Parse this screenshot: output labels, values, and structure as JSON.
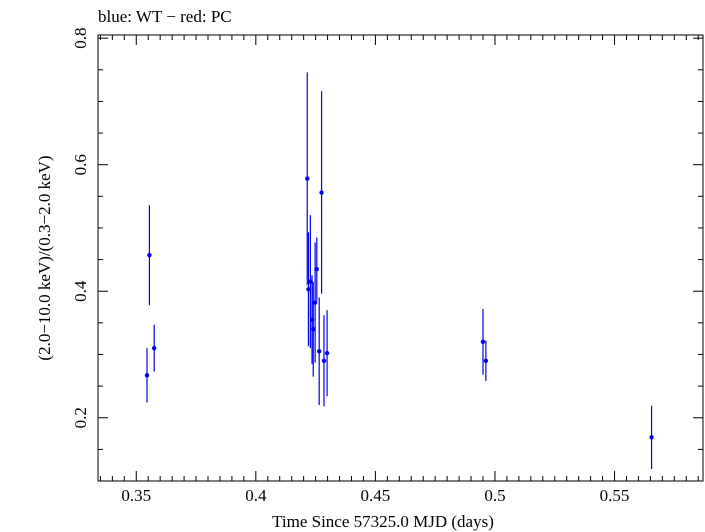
{
  "chart_data": {
    "type": "scatter",
    "title": "blue: WT − red: PC",
    "xlabel": "Time Since 57325.0 MJD (days)",
    "ylabel": "(2.0−10.0 keV)/(0.3−2.0 keV)",
    "xlim": [
      0.334,
      0.587
    ],
    "ylim": [
      0.1,
      0.805
    ],
    "xticks": [
      {
        "value": 0.35,
        "label": "0.35"
      },
      {
        "value": 0.4,
        "label": "0.4"
      },
      {
        "value": 0.45,
        "label": "0.45"
      },
      {
        "value": 0.5,
        "label": "0.5"
      },
      {
        "value": 0.55,
        "label": "0.55"
      }
    ],
    "yticks": [
      {
        "value": 0.2,
        "label": "0.2"
      },
      {
        "value": 0.4,
        "label": "0.4"
      },
      {
        "value": 0.6,
        "label": "0.6"
      },
      {
        "value": 0.8,
        "label": "0.8"
      }
    ],
    "series": [
      {
        "name": "WT",
        "color": "#0000ee",
        "points": [
          {
            "x": 0.3545,
            "y": 0.267,
            "err": 0.043
          },
          {
            "x": 0.3555,
            "y": 0.457,
            "err": 0.079
          },
          {
            "x": 0.3575,
            "y": 0.31,
            "err": 0.037
          },
          {
            "x": 0.4215,
            "y": 0.578,
            "err": 0.168
          },
          {
            "x": 0.422,
            "y": 0.403,
            "err": 0.09
          },
          {
            "x": 0.4228,
            "y": 0.415,
            "err": 0.105
          },
          {
            "x": 0.4235,
            "y": 0.355,
            "err": 0.07
          },
          {
            "x": 0.424,
            "y": 0.34,
            "err": 0.075
          },
          {
            "x": 0.4248,
            "y": 0.382,
            "err": 0.095
          },
          {
            "x": 0.4255,
            "y": 0.435,
            "err": 0.05
          },
          {
            "x": 0.4265,
            "y": 0.305,
            "err": 0.085
          },
          {
            "x": 0.4275,
            "y": 0.556,
            "err": 0.16
          },
          {
            "x": 0.4285,
            "y": 0.29,
            "err": 0.072
          },
          {
            "x": 0.4298,
            "y": 0.302,
            "err": 0.068
          },
          {
            "x": 0.495,
            "y": 0.32,
            "err": 0.052
          },
          {
            "x": 0.4962,
            "y": 0.29,
            "err": 0.032
          },
          {
            "x": 0.5655,
            "y": 0.169,
            "err": 0.05
          }
        ]
      }
    ]
  }
}
